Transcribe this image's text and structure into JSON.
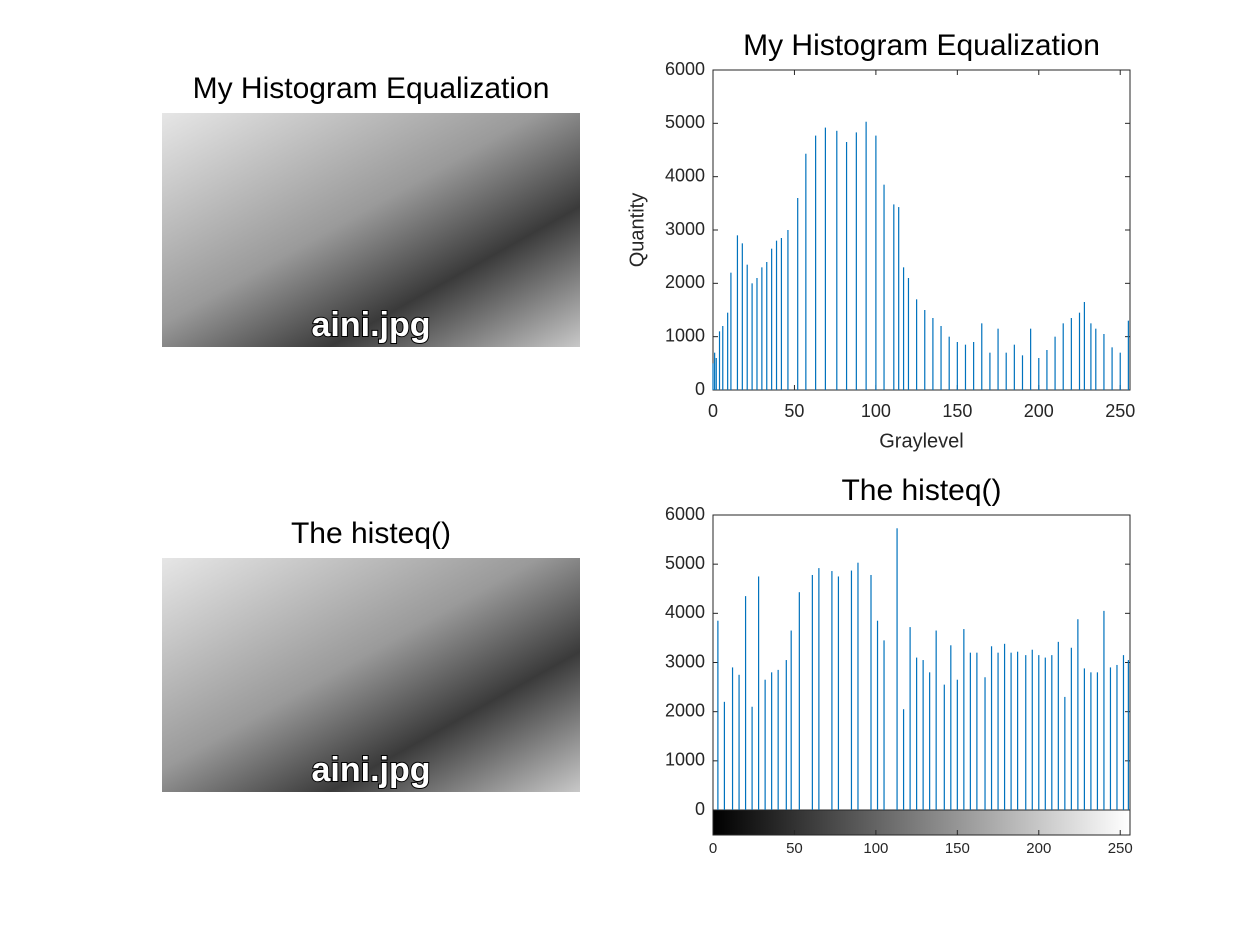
{
  "chart_data": [
    {
      "type": "image",
      "title": "My Histogram Equalization",
      "caption": "aini.jpg"
    },
    {
      "type": "bar",
      "title": "My Histogram Equalization",
      "xlabel": "Graylevel",
      "ylabel": "Quantity",
      "color": "#0072bd",
      "xlim": [
        0,
        256
      ],
      "ylim": [
        0,
        6000
      ],
      "xticks": [
        0,
        50,
        100,
        150,
        200,
        250
      ],
      "yticks": [
        0,
        1000,
        2000,
        3000,
        4000,
        5000,
        6000
      ],
      "x": [
        0,
        1,
        2,
        4,
        6,
        9,
        11,
        15,
        18,
        21,
        24,
        27,
        30,
        33,
        36,
        39,
        42,
        46,
        52,
        57,
        63,
        69,
        76,
        82,
        88,
        94,
        100,
        105,
        111,
        114,
        117,
        120,
        125,
        130,
        135,
        140,
        145,
        150,
        155,
        160,
        165,
        170,
        175,
        180,
        185,
        190,
        195,
        200,
        205,
        210,
        215,
        220,
        225,
        228,
        232,
        235,
        240,
        245,
        250,
        255
      ],
      "values": [
        500,
        700,
        600,
        1100,
        1200,
        1450,
        2200,
        2900,
        2750,
        2350,
        2000,
        2100,
        2300,
        2400,
        2650,
        2800,
        2850,
        3000,
        3600,
        4430,
        4770,
        4920,
        4860,
        4650,
        4830,
        5030,
        4770,
        3850,
        3480,
        3430,
        2300,
        2100,
        1700,
        1500,
        1350,
        1200,
        1000,
        900,
        850,
        900,
        1250,
        700,
        1150,
        700,
        850,
        650,
        1150,
        600,
        750,
        1000,
        1250,
        1350,
        1450,
        1650,
        1250,
        1150,
        1050,
        800,
        700,
        1300
      ]
    },
    {
      "type": "image",
      "title": "The histeq()",
      "caption": "aini.jpg"
    },
    {
      "type": "bar",
      "title": "The histeq()",
      "color": "#0072bd",
      "colorbar": true,
      "xlim": [
        0,
        256
      ],
      "ylim": [
        0,
        6000
      ],
      "xticks": [
        0,
        50,
        100,
        150,
        200,
        250
      ],
      "yticks": [
        0,
        1000,
        2000,
        3000,
        4000,
        5000,
        6000
      ],
      "x": [
        3,
        7,
        12,
        16,
        20,
        24,
        28,
        32,
        36,
        40,
        45,
        48,
        53,
        61,
        65,
        73,
        77,
        85,
        89,
        97,
        101,
        105,
        113,
        117,
        121,
        125,
        129,
        133,
        137,
        142,
        146,
        150,
        154,
        158,
        162,
        167,
        171,
        175,
        179,
        183,
        187,
        192,
        196,
        200,
        204,
        208,
        212,
        216,
        220,
        224,
        228,
        232,
        236,
        240,
        244,
        248,
        252,
        255
      ],
      "values": [
        3850,
        2200,
        2900,
        2750,
        4350,
        2100,
        4750,
        2650,
        2800,
        2850,
        3050,
        3650,
        4430,
        4780,
        4920,
        4860,
        4750,
        4870,
        5030,
        4780,
        3850,
        3450,
        5730,
        2050,
        3720,
        3100,
        3050,
        2800,
        3650,
        2550,
        3350,
        2650,
        3680,
        3200,
        3200,
        2700,
        3330,
        3200,
        3380,
        3200,
        3220,
        3150,
        3260,
        3150,
        3100,
        3150,
        3420,
        2300,
        3300,
        3880,
        2880,
        2800,
        2800,
        4050,
        2900,
        2950,
        3150,
        3050
      ]
    }
  ]
}
